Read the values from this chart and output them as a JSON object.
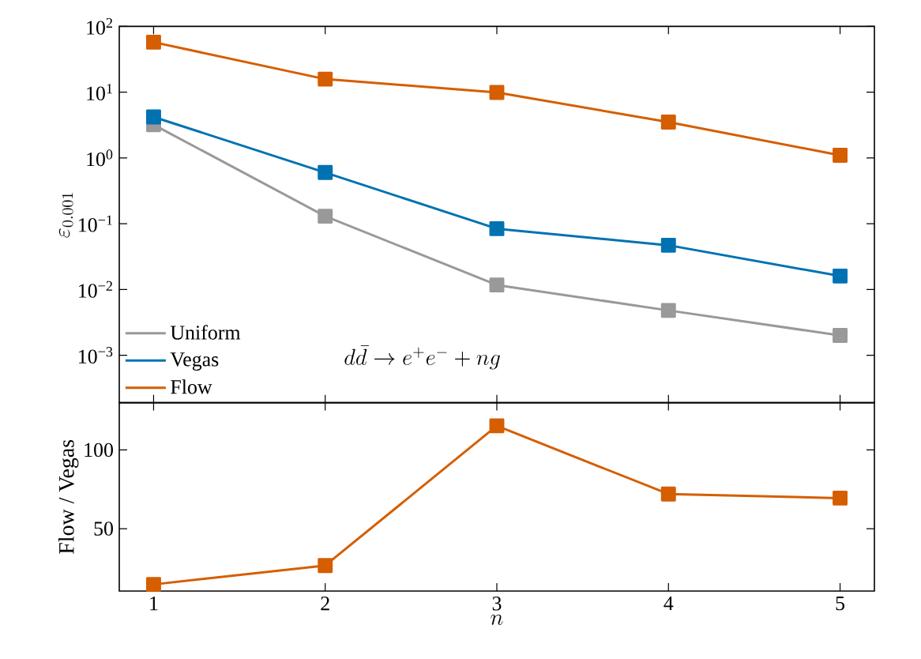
{
  "chart_data": [
    {
      "type": "line",
      "ylabel": "\\varepsilon_{0.001}",
      "x": [
        1,
        2,
        3,
        4,
        5
      ],
      "log": "y",
      "marker": "square",
      "line_style": "solid",
      "grid": false,
      "legend": "bottom left",
      "tick_labels": "y",
      "xlim": [
        0.8,
        5.2
      ],
      "xticks": [
        {
          "value": 1,
          "label": null
        },
        {
          "value": 2,
          "label": null
        },
        {
          "value": 3,
          "label": null
        },
        {
          "value": 4,
          "label": null
        },
        {
          "value": 5,
          "label": null
        }
      ],
      "ylim": [
        0.00019,
        100
      ],
      "yticks": [
        {
          "value": 0.001,
          "label": "10$^{−3}$"
        },
        {
          "value": 0.01,
          "label": "10$^{−2}$"
        },
        {
          "value": 0.1,
          "label": "10$^{−1}$"
        },
        {
          "value": 1,
          "label": "10$^{0}$"
        },
        {
          "value": 10,
          "label": "10$^{1}$"
        },
        {
          "value": 100,
          "label": "10$^{2}$"
        }
      ],
      "annotations": [
        "d\\bar{d} \\rightarrow e^+e^- + ng"
      ],
      "series": [
        {
          "name": "Uniform",
          "color": "#999999",
          "values": [
            3.2,
            0.13,
            0.0117,
            0.0048,
            0.002
          ]
        },
        {
          "name": "Vegas",
          "color": "#0072b2",
          "values": [
            4.2,
            0.6,
            0.084,
            0.047,
            0.016
          ]
        },
        {
          "name": "Flow",
          "color": "#d55e00",
          "values": [
            57.5,
            15.8,
            9.9,
            3.5,
            1.1
          ]
        }
      ]
    },
    {
      "type": "line",
      "xlabel": "n",
      "ylabel": "Flow / Vegas",
      "x": [
        1,
        2,
        3,
        4,
        5
      ],
      "marker": "square",
      "line_style": "solid",
      "grid": false,
      "xlim": [
        0.8,
        5.2
      ],
      "xticks": [
        1,
        2,
        3,
        4,
        5
      ],
      "ylim": [
        10.4,
        130
      ],
      "yticks": [
        50,
        100
      ],
      "series": [
        {
          "color": "#d55e00",
          "values": [
            14.6,
            26.6,
            115.3,
            72.0,
            69.4
          ]
        }
      ]
    }
  ]
}
